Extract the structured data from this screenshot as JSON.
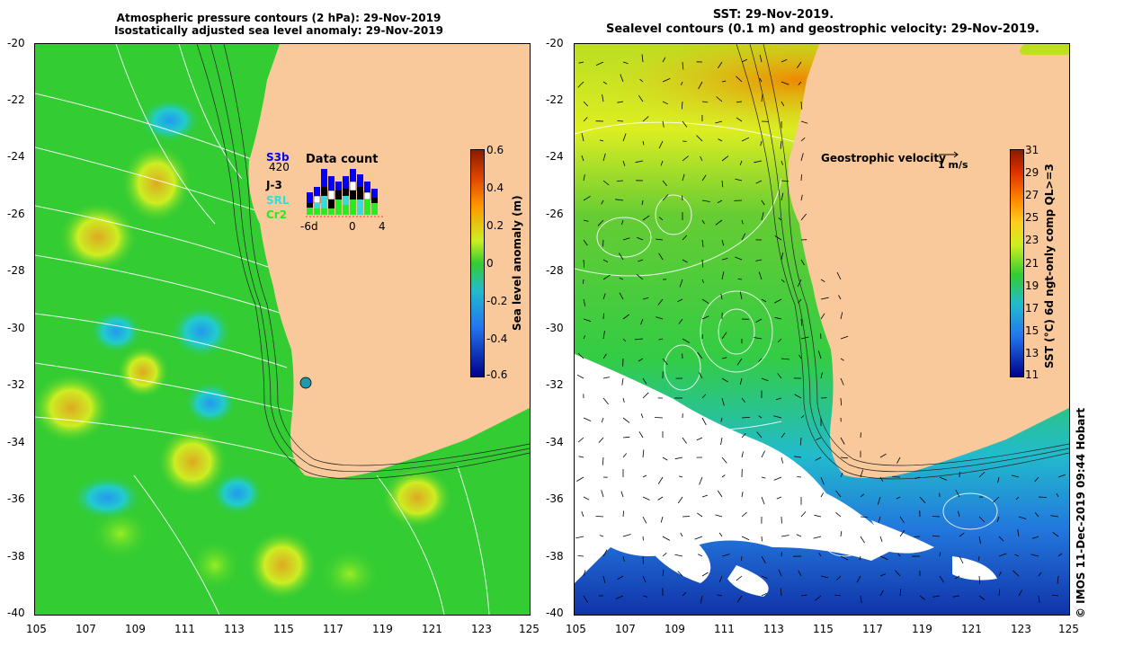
{
  "left_panel": {
    "title_line1": "Atmospheric pressure contours (2 hPa): 29-Nov-2019",
    "title_line2": "Isostatically adjusted sea level anomaly: 29-Nov-2019",
    "colorbar_label": "Sea level anomaly (m)",
    "colorbar_ticks": [
      "0.6",
      "0.4",
      "0.2",
      "0",
      "-0.2",
      "-0.4",
      "-0.6"
    ],
    "legend_title": "Data count",
    "legend_max": "420",
    "legend_items": [
      {
        "label": "S3b",
        "color": "#0000ff"
      },
      {
        "label": "J-3",
        "color": "#000000"
      },
      {
        "label": "SRL",
        "color": "#33dddd"
      },
      {
        "label": "Cr2",
        "color": "#22ee22"
      }
    ],
    "legend_axis": [
      "-6d",
      "0",
      "4"
    ]
  },
  "right_panel": {
    "title_line1": "SST: 29-Nov-2019.",
    "title_line2": "Sealevel contours (0.1 m) and geostrophic velocity: 29-Nov-2019.",
    "velocity_label": "Geostrophic velocity",
    "velocity_scale": "1 m/s",
    "colorbar_label": "SST (°C) 6d ngt-only comp QL>=3",
    "colorbar_ticks": [
      "31",
      "29",
      "27",
      "25",
      "23",
      "21",
      "19",
      "17",
      "15",
      "13",
      "11"
    ]
  },
  "axes": {
    "lat_ticks": [
      "-20",
      "-22",
      "-24",
      "-26",
      "-28",
      "-30",
      "-32",
      "-34",
      "-36",
      "-38",
      "-40"
    ],
    "lon_ticks": [
      "105",
      "107",
      "109",
      "111",
      "113",
      "115",
      "117",
      "119",
      "121",
      "123",
      "125"
    ]
  },
  "credit": "© IMOS 11-Dec-2019 09:44 Hobart",
  "colors": {
    "land": "#f9c89b",
    "ocean_green": "#33cc33",
    "ocean_yellow": "#ccee22",
    "ocean_cyan": "#22bbcc"
  }
}
